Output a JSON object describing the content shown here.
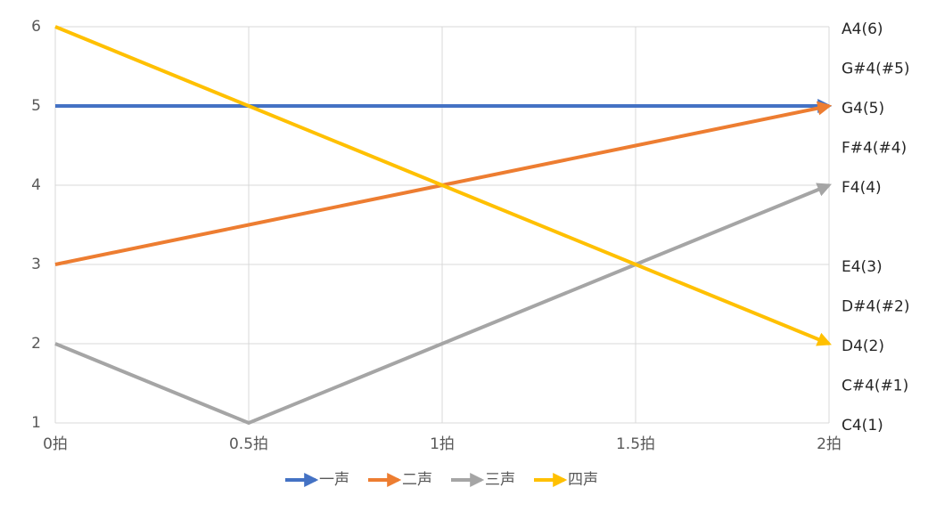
{
  "chart_data": {
    "type": "line",
    "categories": [
      "0拍",
      "0.5拍",
      "1拍",
      "1.5拍",
      "2拍"
    ],
    "series": [
      {
        "name": "一声",
        "color": "#4472c4",
        "values": [
          5,
          5,
          5,
          5,
          5
        ]
      },
      {
        "name": "二声",
        "color": "#ed7d31",
        "values": [
          3,
          3.5,
          4,
          4.5,
          5
        ]
      },
      {
        "name": "三声",
        "color": "#a5a5a5",
        "values": [
          2,
          1,
          2,
          3,
          4
        ]
      },
      {
        "name": "四声",
        "color": "#ffc000",
        "values": [
          6,
          5,
          4,
          3,
          2
        ]
      }
    ],
    "ylim": [
      1,
      6
    ],
    "yticks": [
      1,
      2,
      3,
      4,
      5,
      6
    ],
    "y2lim": [
      1,
      6
    ],
    "y2ticks": [
      {
        "value": 6,
        "label": "A4(6)"
      },
      {
        "value": 5.5,
        "label": "G#4(#5)"
      },
      {
        "value": 5,
        "label": "G4(5)"
      },
      {
        "value": 4.5,
        "label": "F#4(#4)"
      },
      {
        "value": 4,
        "label": "F4(4)"
      },
      {
        "value": 3,
        "label": "E4(3)"
      },
      {
        "value": 2.5,
        "label": "D#4(#2)"
      },
      {
        "value": 2,
        "label": "D4(2)"
      },
      {
        "value": 1.5,
        "label": "C#4(#1)"
      },
      {
        "value": 1,
        "label": "C4(1)"
      }
    ],
    "grid": true,
    "legend": "bottom"
  }
}
